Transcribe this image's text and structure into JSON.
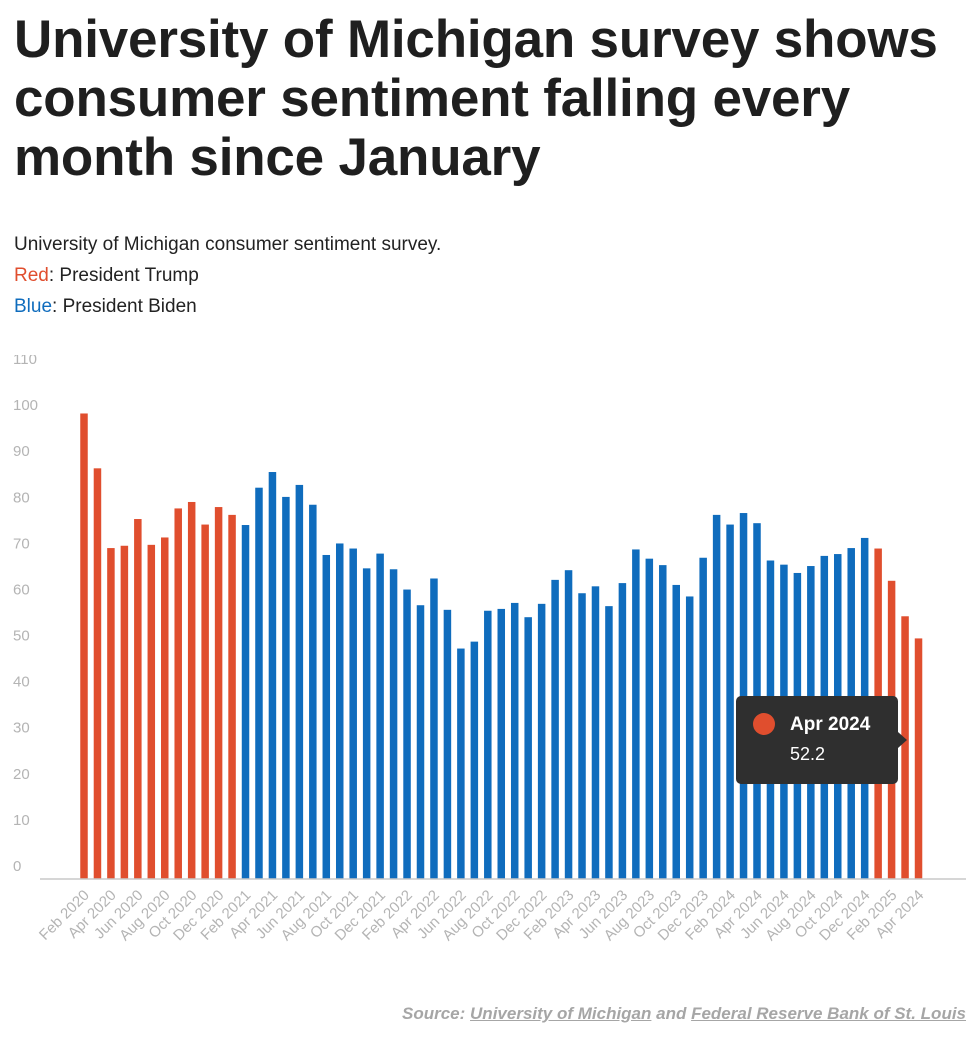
{
  "title": "University of Michigan survey shows consumer sentiment falling every month since January",
  "legend": {
    "description": "University of Michigan consumer sentiment survey.",
    "red_word": "Red",
    "red_text": ": President Trump",
    "blue_word": "Blue",
    "blue_text": ": President Biden"
  },
  "colors": {
    "trump": "#e04e2e",
    "biden": "#0f6cbd",
    "axis_text": "#b4b4b4"
  },
  "tooltip": {
    "label": "Apr 2024",
    "value": "52.2"
  },
  "source": {
    "prefix": "Source: ",
    "link1": "University of Michigan",
    "middle": " and ",
    "link2": "Federal Reserve Bank of St. Louis"
  },
  "chart_data": {
    "type": "bar",
    "ylim": [
      0,
      110
    ],
    "yticks": [
      0,
      10,
      20,
      30,
      40,
      50,
      60,
      70,
      80,
      90,
      100,
      110
    ],
    "categories": [
      "Feb 2020",
      "Mar 2020",
      "Apr 2020",
      "May 2020",
      "Jun 2020",
      "Jul 2020",
      "Aug 2020",
      "Sep 2020",
      "Oct 2020",
      "Nov 2020",
      "Dec 2020",
      "Jan 2021",
      "Feb 2021",
      "Mar 2021",
      "Apr 2021",
      "May 2021",
      "Jun 2021",
      "Jul 2021",
      "Aug 2021",
      "Sep 2021",
      "Oct 2021",
      "Nov 2021",
      "Dec 2021",
      "Jan 2022",
      "Feb 2022",
      "Mar 2022",
      "Apr 2022",
      "May 2022",
      "Jun 2022",
      "Jul 2022",
      "Aug 2022",
      "Sep 2022",
      "Oct 2022",
      "Nov 2022",
      "Dec 2022",
      "Jan 2023",
      "Feb 2023",
      "Mar 2023",
      "Apr 2023",
      "May 2023",
      "Jun 2023",
      "Jul 2023",
      "Aug 2023",
      "Sep 2023",
      "Oct 2023",
      "Nov 2023",
      "Dec 2023",
      "Jan 2024",
      "Feb 2024",
      "Mar 2024",
      "Apr 2024",
      "May 2024",
      "Jun 2024",
      "Jul 2024",
      "Aug 2024",
      "Sep 2024",
      "Oct 2024",
      "Nov 2024",
      "Dec 2024",
      "Jan 2025",
      "Feb 2025",
      "Mar 2025",
      "Apr 2024"
    ],
    "xtick_labels": [
      "Feb 2020",
      "Apr 2020",
      "Jun 2020",
      "Aug 2020",
      "Oct 2020",
      "Dec 2020",
      "Feb 2021",
      "Apr 2021",
      "Jun 2021",
      "Aug 2021",
      "Oct 2021",
      "Dec 2021",
      "Feb 2022",
      "Apr 2022",
      "Jun 2022",
      "Aug 2022",
      "Oct 2022",
      "Dec 2022",
      "Feb 2023",
      "Apr 2023",
      "Jun 2023",
      "Aug 2023",
      "Oct 2023",
      "Dec 2023",
      "Feb 2024",
      "Apr 2024",
      "Jun 2024",
      "Aug 2024",
      "Oct 2024",
      "Dec 2024",
      "Feb 2025",
      "Apr 2024"
    ],
    "values": [
      101.0,
      89.1,
      71.8,
      72.3,
      78.1,
      72.5,
      74.1,
      80.4,
      81.8,
      76.9,
      80.7,
      79.0,
      76.8,
      84.9,
      88.3,
      82.9,
      85.5,
      81.2,
      70.3,
      72.8,
      71.7,
      67.4,
      70.6,
      67.2,
      62.8,
      59.4,
      65.2,
      58.4,
      50.0,
      51.5,
      58.2,
      58.6,
      59.9,
      56.8,
      59.7,
      64.9,
      67.0,
      62.0,
      63.5,
      59.2,
      64.2,
      71.5,
      69.5,
      68.1,
      63.8,
      61.3,
      69.7,
      79.0,
      76.9,
      79.4,
      77.2,
      69.1,
      68.2,
      66.4,
      67.9,
      70.1,
      70.5,
      71.8,
      74.0,
      71.7,
      64.7,
      57.0,
      52.2
    ],
    "colors": [
      "trump",
      "trump",
      "trump",
      "trump",
      "trump",
      "trump",
      "trump",
      "trump",
      "trump",
      "trump",
      "trump",
      "trump",
      "biden",
      "biden",
      "biden",
      "biden",
      "biden",
      "biden",
      "biden",
      "biden",
      "biden",
      "biden",
      "biden",
      "biden",
      "biden",
      "biden",
      "biden",
      "biden",
      "biden",
      "biden",
      "biden",
      "biden",
      "biden",
      "biden",
      "biden",
      "biden",
      "biden",
      "biden",
      "biden",
      "biden",
      "biden",
      "biden",
      "biden",
      "biden",
      "biden",
      "biden",
      "biden",
      "biden",
      "biden",
      "biden",
      "biden",
      "biden",
      "biden",
      "biden",
      "biden",
      "biden",
      "biden",
      "biden",
      "biden",
      "trump",
      "trump",
      "trump",
      "trump"
    ],
    "grid": false,
    "legend": "none"
  }
}
